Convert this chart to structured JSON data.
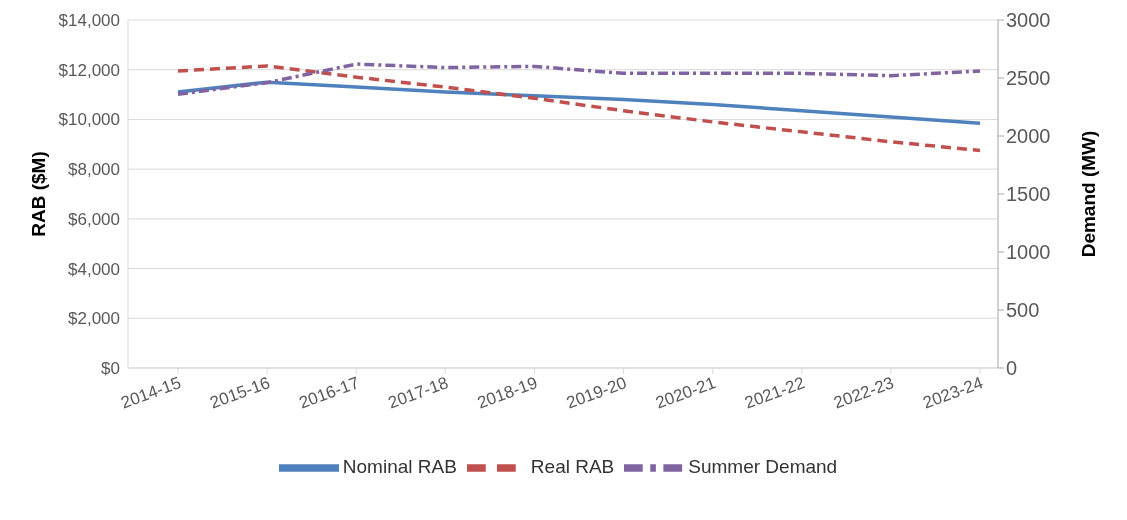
{
  "chart_data": {
    "type": "line",
    "ylabel": "RAB ($M)",
    "y2label": "Demand (MW)",
    "categories": [
      "2014-15",
      "2015-16",
      "2016-17",
      "2017-18",
      "2018-19",
      "2019-20",
      "2020-21",
      "2021-22",
      "2022-23",
      "2023-24"
    ],
    "series": [
      {
        "name": "Nominal RAB",
        "color": "#4f81bd",
        "line_style": "solid",
        "values": [
          11100,
          11500,
          11300,
          11100,
          10950,
          10800,
          10600,
          10350,
          10100,
          9850
        ]
      },
      {
        "name": "Real RAB",
        "color": "#c0504d",
        "line_style": "dashed",
        "values": [
          11950,
          12150,
          11700,
          11300,
          10850,
          10350,
          9900,
          9500,
          9100,
          8750
        ]
      },
      {
        "name": "Summer Demand",
        "color": "#8064a2",
        "line_style": "dashdot",
        "axis": "y2",
        "values": [
          2360,
          2460,
          2620,
          2590,
          2600,
          2540,
          2540,
          2540,
          2520,
          2560
        ]
      }
    ],
    "ylim": [
      0,
      14000
    ],
    "yticks": [
      {
        "value": 0,
        "label": "$0"
      },
      {
        "value": 2000,
        "label": "$2,000"
      },
      {
        "value": 4000,
        "label": "$4,000"
      },
      {
        "value": 6000,
        "label": "$6,000"
      },
      {
        "value": 8000,
        "label": "$8,000"
      },
      {
        "value": 10000,
        "label": "$10,000"
      },
      {
        "value": 12000,
        "label": "$12,000"
      },
      {
        "value": 14000,
        "label": "$14,000"
      }
    ],
    "y2lim": [
      0,
      3000
    ],
    "y2ticks": [
      0,
      500,
      1000,
      1500,
      2000,
      2500,
      3000
    ],
    "grid": "y",
    "legend": "bottom",
    "marker": "none"
  }
}
